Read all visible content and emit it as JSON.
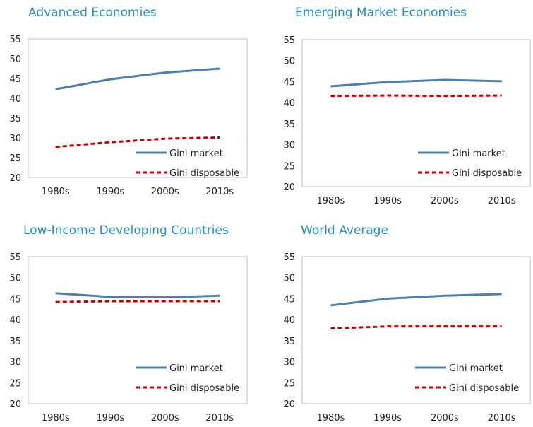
{
  "legend": {
    "market": "Gini market",
    "disposable": "Gini disposable"
  },
  "colors": {
    "market": "#4d7fab",
    "disposable": "#c00000",
    "title": "#2a8fc7"
  },
  "chart_data": [
    {
      "type": "line",
      "title": "Advanced Economies",
      "categories": [
        "1980s",
        "1990s",
        "2000s",
        "2010s"
      ],
      "ylim": [
        20,
        55
      ],
      "yticks": [
        "20",
        "25",
        "30",
        "35",
        "40",
        "45",
        "50",
        "55"
      ],
      "series": [
        {
          "name": "Gini market",
          "values": [
            42.3,
            44.8,
            46.5,
            47.5
          ]
        },
        {
          "name": "Gini disposable",
          "values": [
            27.7,
            28.9,
            29.8,
            30.1
          ]
        }
      ],
      "legend_position": "bottom-right",
      "grid": false
    },
    {
      "type": "line",
      "title": "Emerging Market Economies",
      "categories": [
        "1980s",
        "1990s",
        "2000s",
        "2010s"
      ],
      "ylim": [
        20,
        55
      ],
      "yticks": [
        "20",
        "25",
        "30",
        "35",
        "40",
        "45",
        "50",
        "55"
      ],
      "series": [
        {
          "name": "Gini market",
          "values": [
            43.9,
            44.9,
            45.4,
            45.1
          ]
        },
        {
          "name": "Gini disposable",
          "values": [
            41.6,
            41.7,
            41.6,
            41.7
          ]
        }
      ],
      "legend_position": "bottom-right",
      "grid": false
    },
    {
      "type": "line",
      "title": "Low-Income  Developing Countries",
      "categories": [
        "1980s",
        "1990s",
        "2000s",
        "2010s"
      ],
      "ylim": [
        20,
        55
      ],
      "yticks": [
        "20",
        "25",
        "30",
        "35",
        "40",
        "45",
        "50",
        "55"
      ],
      "series": [
        {
          "name": "Gini market",
          "values": [
            46.3,
            45.4,
            45.3,
            45.7
          ]
        },
        {
          "name": "Gini disposable",
          "values": [
            44.2,
            44.4,
            44.4,
            44.4
          ]
        }
      ],
      "legend_position": "bottom-right",
      "grid": false
    },
    {
      "type": "line",
      "title": "World Average",
      "categories": [
        "1980s",
        "1990s",
        "2000s",
        "2010s"
      ],
      "ylim": [
        20,
        55
      ],
      "yticks": [
        "20",
        "25",
        "30",
        "35",
        "40",
        "45",
        "50",
        "55"
      ],
      "series": [
        {
          "name": "Gini market",
          "values": [
            43.4,
            45.0,
            45.7,
            46.1
          ]
        },
        {
          "name": "Gini disposable",
          "values": [
            37.9,
            38.4,
            38.4,
            38.4
          ]
        }
      ],
      "legend_position": "bottom-right",
      "grid": false
    }
  ]
}
